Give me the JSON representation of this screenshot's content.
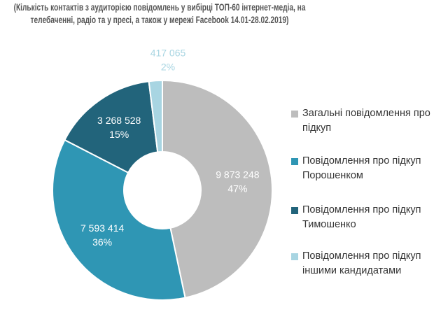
{
  "chart_data": {
    "type": "donut",
    "title": "(Кількість контактів з аудиторією повідомлень у вибірці ТОП-60 інтернет-медіа, на телебаченні, радіо та у пресі, а також у мережі Facebook 14.01-28.02.2019)",
    "categories": [
      "Загальні повідомлення про підкуп",
      "Повідомлення про підкуп Порошенком",
      "Повідомлення про підкуп Тимошенко",
      "Повідомлення про підкуп іншими кандидатами"
    ],
    "values": [
      9873248,
      7593414,
      3268528,
      417065
    ],
    "value_labels": [
      "9 873 248",
      "7 593 414",
      "3 268 528",
      "417 065"
    ],
    "shares": [
      47,
      36,
      15,
      2
    ],
    "share_labels": [
      "47%",
      "36%",
      "15%",
      "2%"
    ],
    "colors": [
      "#bdbdbd",
      "#2f96b4",
      "#22647b",
      "#a8d5e2"
    ],
    "legend": "right"
  }
}
